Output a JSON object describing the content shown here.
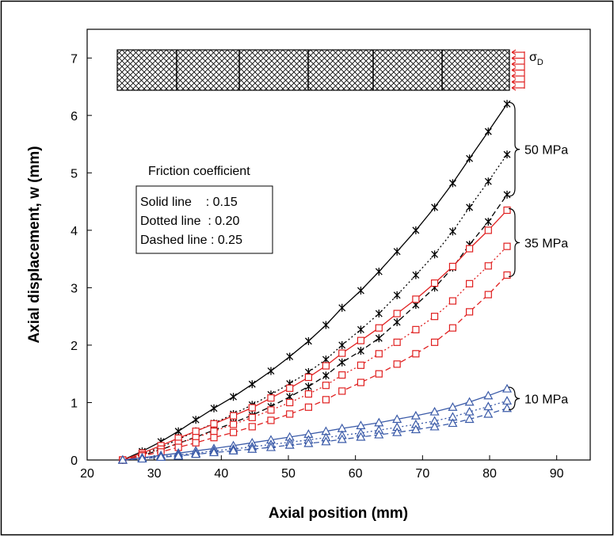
{
  "chart_data": {
    "type": "line",
    "xlabel": "Axial position (mm)",
    "ylabel": "Axial displacement, w (mm)",
    "xlim": [
      20,
      95
    ],
    "ylim": [
      0,
      7.5
    ],
    "xticks": [
      "20",
      "30",
      "40",
      "50",
      "60",
      "70",
      "80",
      "90"
    ],
    "yticks": [
      "0",
      "1",
      "2",
      "3",
      "4",
      "5",
      "6",
      "7"
    ],
    "grid": false,
    "legend_title": "Friction coefficient",
    "legend_items": [
      "Solid line    : 0.15",
      "Dotted line  : 0.20",
      "Dashed line : 0.25"
    ],
    "sigma_symbol": "σ",
    "sigma_subscript": "D",
    "colors": {
      "50 MPa": "#000000",
      "35 MPa": "#e02020",
      "10 MPa": "#3a5aa8"
    },
    "x": [
      25.3,
      28.2,
      31.0,
      33.6,
      36.2,
      38.9,
      41.8,
      44.6,
      47.4,
      50.2,
      53.0,
      55.6,
      58.0,
      60.8,
      63.5,
      66.2,
      69.0,
      71.8,
      74.5,
      77.0,
      79.8,
      82.6
    ],
    "groups": [
      {
        "label": "50 MPa",
        "marker": "star",
        "color": "#000000",
        "series": [
          {
            "friction": 0.15,
            "values": [
              0,
              0.15,
              0.32,
              0.5,
              0.7,
              0.9,
              1.1,
              1.32,
              1.55,
              1.8,
              2.07,
              2.35,
              2.65,
              2.95,
              3.28,
              3.63,
              4.0,
              4.4,
              4.82,
              5.25,
              5.72,
              6.2
            ]
          },
          {
            "friction": 0.2,
            "values": [
              0,
              0.1,
              0.22,
              0.36,
              0.5,
              0.64,
              0.8,
              0.96,
              1.14,
              1.33,
              1.53,
              1.75,
              2.0,
              2.27,
              2.55,
              2.87,
              3.22,
              3.58,
              3.98,
              4.4,
              4.85,
              5.32
            ]
          },
          {
            "friction": 0.25,
            "values": [
              0,
              0.08,
              0.18,
              0.29,
              0.4,
              0.52,
              0.65,
              0.78,
              0.93,
              1.1,
              1.28,
              1.47,
              1.7,
              1.9,
              2.12,
              2.4,
              2.7,
              3.0,
              3.35,
              3.75,
              4.15,
              4.62
            ]
          }
        ]
      },
      {
        "label": "35 MPa",
        "marker": "square",
        "color": "#e02020",
        "series": [
          {
            "friction": 0.15,
            "values": [
              0,
              0.12,
              0.25,
              0.38,
              0.5,
              0.63,
              0.77,
              0.91,
              1.08,
              1.25,
              1.44,
              1.64,
              1.86,
              2.08,
              2.3,
              2.55,
              2.8,
              3.08,
              3.37,
              3.68,
              4.0,
              4.35
            ]
          },
          {
            "friction": 0.2,
            "values": [
              0,
              0.09,
              0.19,
              0.29,
              0.39,
              0.5,
              0.62,
              0.74,
              0.87,
              1.0,
              1.15,
              1.3,
              1.48,
              1.65,
              1.85,
              2.05,
              2.27,
              2.5,
              2.77,
              3.07,
              3.38,
              3.72
            ]
          },
          {
            "friction": 0.25,
            "values": [
              0,
              0.07,
              0.14,
              0.22,
              0.3,
              0.39,
              0.48,
              0.58,
              0.69,
              0.8,
              0.92,
              1.05,
              1.2,
              1.35,
              1.5,
              1.67,
              1.85,
              2.05,
              2.3,
              2.58,
              2.88,
              3.22
            ]
          }
        ]
      },
      {
        "label": "10 MPa",
        "marker": "triangle",
        "color": "#3a5aa8",
        "series": [
          {
            "friction": 0.15,
            "values": [
              0,
              0.04,
              0.08,
              0.12,
              0.16,
              0.2,
              0.25,
              0.3,
              0.35,
              0.4,
              0.45,
              0.5,
              0.55,
              0.6,
              0.65,
              0.71,
              0.77,
              0.84,
              0.92,
              1.01,
              1.12,
              1.24
            ]
          },
          {
            "friction": 0.2,
            "values": [
              0,
              0.03,
              0.06,
              0.09,
              0.12,
              0.16,
              0.19,
              0.23,
              0.27,
              0.31,
              0.35,
              0.39,
              0.43,
              0.47,
              0.52,
              0.57,
              0.62,
              0.68,
              0.75,
              0.84,
              0.93,
              1.03
            ]
          },
          {
            "friction": 0.25,
            "values": [
              0,
              0.02,
              0.05,
              0.07,
              0.1,
              0.13,
              0.16,
              0.19,
              0.22,
              0.26,
              0.29,
              0.32,
              0.36,
              0.4,
              0.44,
              0.48,
              0.53,
              0.58,
              0.64,
              0.71,
              0.8,
              0.9
            ]
          }
        ]
      }
    ]
  }
}
